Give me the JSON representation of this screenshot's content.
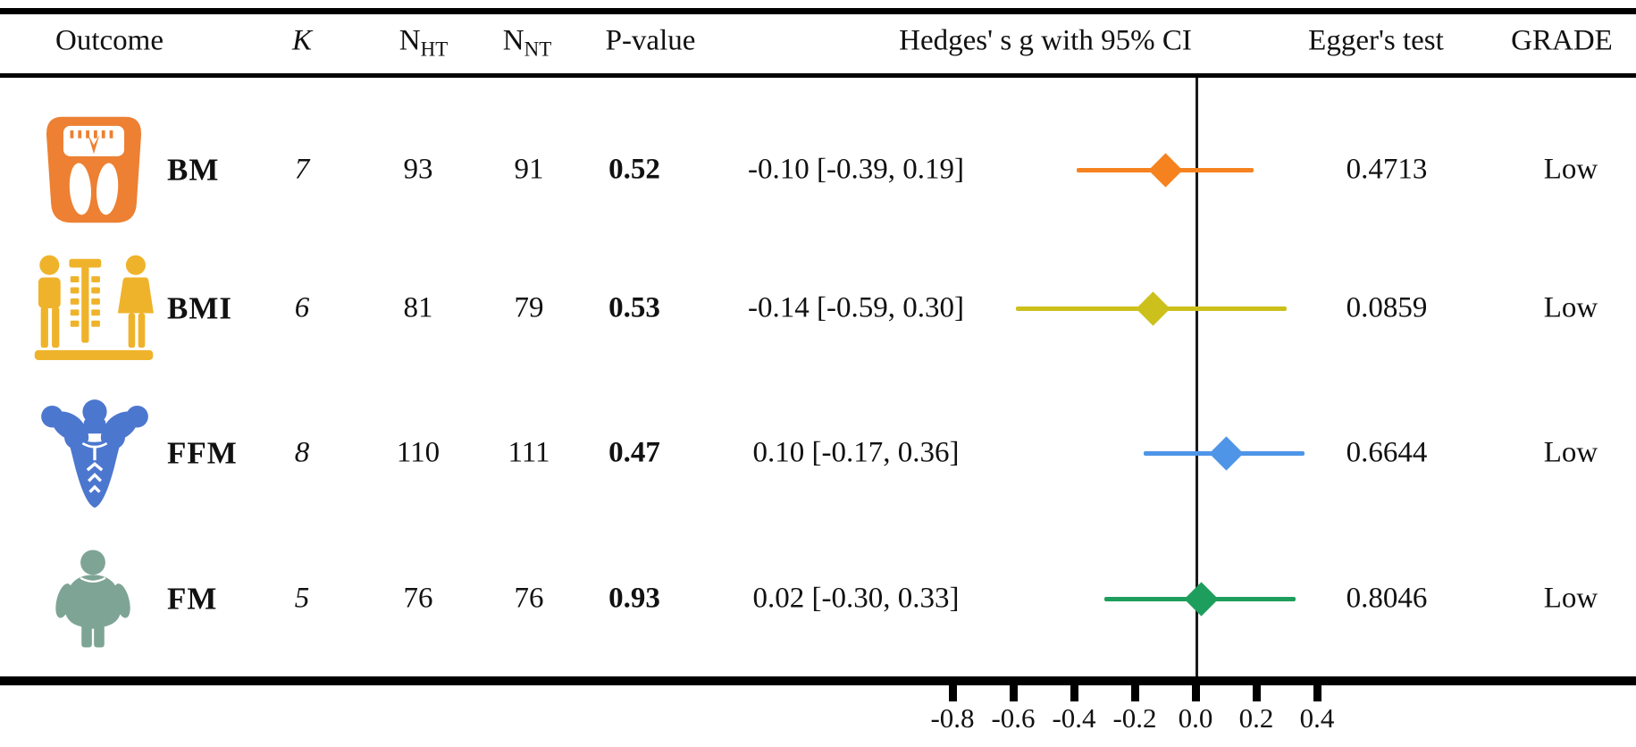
{
  "header": {
    "outcome": "Outcome",
    "k": "K",
    "n_base": "N",
    "n_ht_sub": "HT",
    "n_nt_sub": "NT",
    "p_value": "P-value",
    "hedges": "Hedges' s g with 95% CI",
    "egger": "Egger's test",
    "grade": "GRADE"
  },
  "rows": [
    {
      "outcome": "BM",
      "icon": "weight-scale-icon",
      "icon_color": "#ED8032",
      "k": "7",
      "n_ht": "93",
      "n_nt": "91",
      "p": "0.52",
      "ci_text": "-0.10 [-0.39, 0.19]",
      "egger": "0.4713",
      "grade": "Low",
      "marker_color": "#F5821F"
    },
    {
      "outcome": "BMI",
      "icon": "bmi-measure-people-icon",
      "icon_color": "#EFB32B",
      "k": "6",
      "n_ht": "81",
      "n_nt": "79",
      "p": "0.53",
      "ci_text": "-0.14 [-0.59, 0.30]",
      "egger": "0.0859",
      "grade": "Low",
      "marker_color": "#CCC01C"
    },
    {
      "outcome": "FFM",
      "icon": "muscle-man-icon",
      "icon_color": "#4C77CF",
      "k": "8",
      "n_ht": "110",
      "n_nt": "111",
      "p": "0.47",
      "ci_text": "0.10 [-0.17, 0.36]",
      "egger": "0.6644",
      "grade": "Low",
      "marker_color": "#4E95E8"
    },
    {
      "outcome": "FM",
      "icon": "overweight-person-icon",
      "icon_color": "#7EA496",
      "k": "5",
      "n_ht": "76",
      "n_nt": "76",
      "p": "0.93",
      "ci_text": "0.02 [-0.30, 0.33]",
      "egger": "0.8046",
      "grade": "Low",
      "marker_color": "#1E9E5C"
    }
  ],
  "chart_data": {
    "type": "scatter",
    "subtype": "forest-plot",
    "title": "Hedges' s g with 95% CI",
    "xlabel": "",
    "ylabel": "",
    "xlim": [
      -1.0,
      0.6
    ],
    "x_ticks": [
      -0.8,
      -0.6,
      -0.4,
      -0.2,
      0.0,
      0.2,
      0.4
    ],
    "tick_labels": [
      "-0.8",
      "-0.6",
      "-0.4",
      "-0.2",
      "0.0",
      "0.2",
      "0.4"
    ],
    "zero_reference_line": 0.0,
    "grid": false,
    "legend_position": "none",
    "series": [
      {
        "name": "BM",
        "estimate": -0.1,
        "ci_low": -0.39,
        "ci_high": 0.19,
        "p_value": 0.52,
        "k": 7,
        "n_ht": 93,
        "n_nt": 91,
        "egger_p": 0.4713,
        "grade": "Low",
        "color": "#F5821F"
      },
      {
        "name": "BMI",
        "estimate": -0.14,
        "ci_low": -0.59,
        "ci_high": 0.3,
        "p_value": 0.53,
        "k": 6,
        "n_ht": 81,
        "n_nt": 79,
        "egger_p": 0.0859,
        "grade": "Low",
        "color": "#CCC01C"
      },
      {
        "name": "FFM",
        "estimate": 0.1,
        "ci_low": -0.17,
        "ci_high": 0.36,
        "p_value": 0.47,
        "k": 8,
        "n_ht": 110,
        "n_nt": 111,
        "egger_p": 0.6644,
        "grade": "Low",
        "color": "#4E95E8"
      },
      {
        "name": "FM",
        "estimate": 0.02,
        "ci_low": -0.3,
        "ci_high": 0.33,
        "p_value": 0.93,
        "k": 5,
        "n_ht": 76,
        "n_nt": 76,
        "egger_p": 0.8046,
        "grade": "Low",
        "color": "#1E9E5C"
      }
    ]
  }
}
